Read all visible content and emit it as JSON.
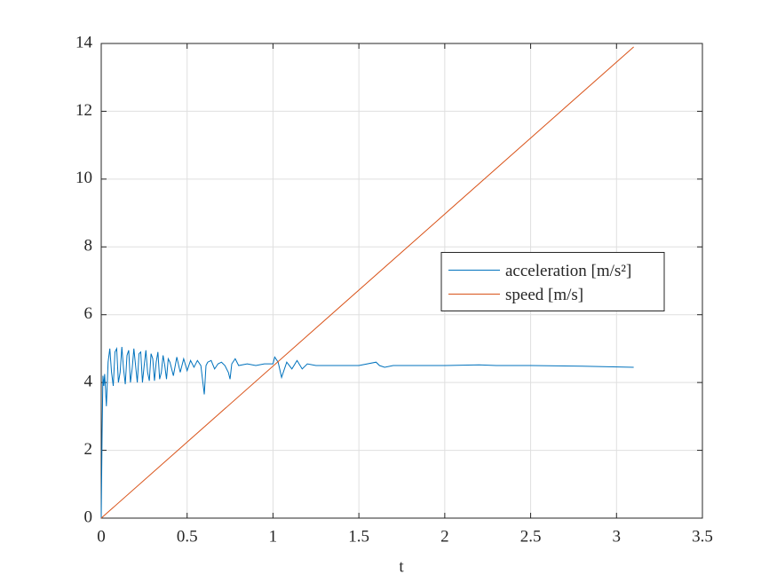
{
  "chart_data": {
    "type": "line",
    "xlabel": "t",
    "xlim": [
      0,
      3.5
    ],
    "xticks": [
      0,
      0.5,
      1,
      1.5,
      2,
      2.5,
      3,
      3.5
    ],
    "ylim": [
      0,
      14
    ],
    "yticks": [
      0,
      2,
      4,
      6,
      8,
      10,
      12,
      14
    ],
    "grid": true,
    "legend": "east",
    "series": [
      {
        "name": "acceleration [m/s²]",
        "color": "#0072bd",
        "x": [
          0,
          0.005,
          0.01,
          0.015,
          0.02,
          0.03,
          0.04,
          0.05,
          0.06,
          0.07,
          0.08,
          0.09,
          0.1,
          0.11,
          0.12,
          0.13,
          0.14,
          0.15,
          0.16,
          0.17,
          0.18,
          0.19,
          0.2,
          0.21,
          0.22,
          0.23,
          0.24,
          0.25,
          0.26,
          0.27,
          0.28,
          0.29,
          0.3,
          0.31,
          0.32,
          0.33,
          0.34,
          0.35,
          0.36,
          0.37,
          0.38,
          0.39,
          0.4,
          0.42,
          0.44,
          0.46,
          0.48,
          0.5,
          0.52,
          0.54,
          0.56,
          0.58,
          0.6,
          0.61,
          0.62,
          0.64,
          0.66,
          0.68,
          0.7,
          0.72,
          0.74,
          0.75,
          0.76,
          0.78,
          0.8,
          0.85,
          0.9,
          0.95,
          1.0,
          1.01,
          1.03,
          1.05,
          1.08,
          1.11,
          1.14,
          1.17,
          1.2,
          1.25,
          1.3,
          1.4,
          1.5,
          1.6,
          1.62,
          1.65,
          1.7,
          1.8,
          2.0,
          2.2,
          2.3,
          2.5,
          2.8,
          3.1
        ],
        "values": [
          0,
          2.5,
          4.2,
          3.9,
          4.25,
          3.3,
          4.6,
          5.0,
          4.3,
          3.9,
          4.9,
          5.0,
          4.0,
          4.3,
          5.05,
          4.4,
          3.95,
          4.8,
          4.95,
          4.0,
          4.4,
          5.0,
          4.5,
          4.0,
          4.85,
          4.9,
          4.0,
          4.5,
          4.95,
          4.3,
          4.05,
          4.85,
          4.7,
          4.05,
          4.6,
          4.9,
          4.1,
          4.3,
          4.8,
          4.5,
          4.1,
          4.7,
          4.6,
          4.2,
          4.75,
          4.3,
          4.7,
          4.35,
          4.65,
          4.45,
          4.65,
          4.5,
          3.65,
          4.5,
          4.6,
          4.65,
          4.4,
          4.55,
          4.6,
          4.5,
          4.3,
          4.1,
          4.55,
          4.7,
          4.5,
          4.55,
          4.5,
          4.55,
          4.55,
          4.75,
          4.6,
          4.15,
          4.6,
          4.4,
          4.65,
          4.4,
          4.55,
          4.5,
          4.5,
          4.5,
          4.5,
          4.6,
          4.5,
          4.45,
          4.5,
          4.5,
          4.5,
          4.52,
          4.5,
          4.5,
          4.48,
          4.45
        ]
      },
      {
        "name": "speed [m/s]",
        "color": "#d95319",
        "x": [
          0,
          3.1
        ],
        "values": [
          0,
          13.9
        ]
      }
    ]
  }
}
